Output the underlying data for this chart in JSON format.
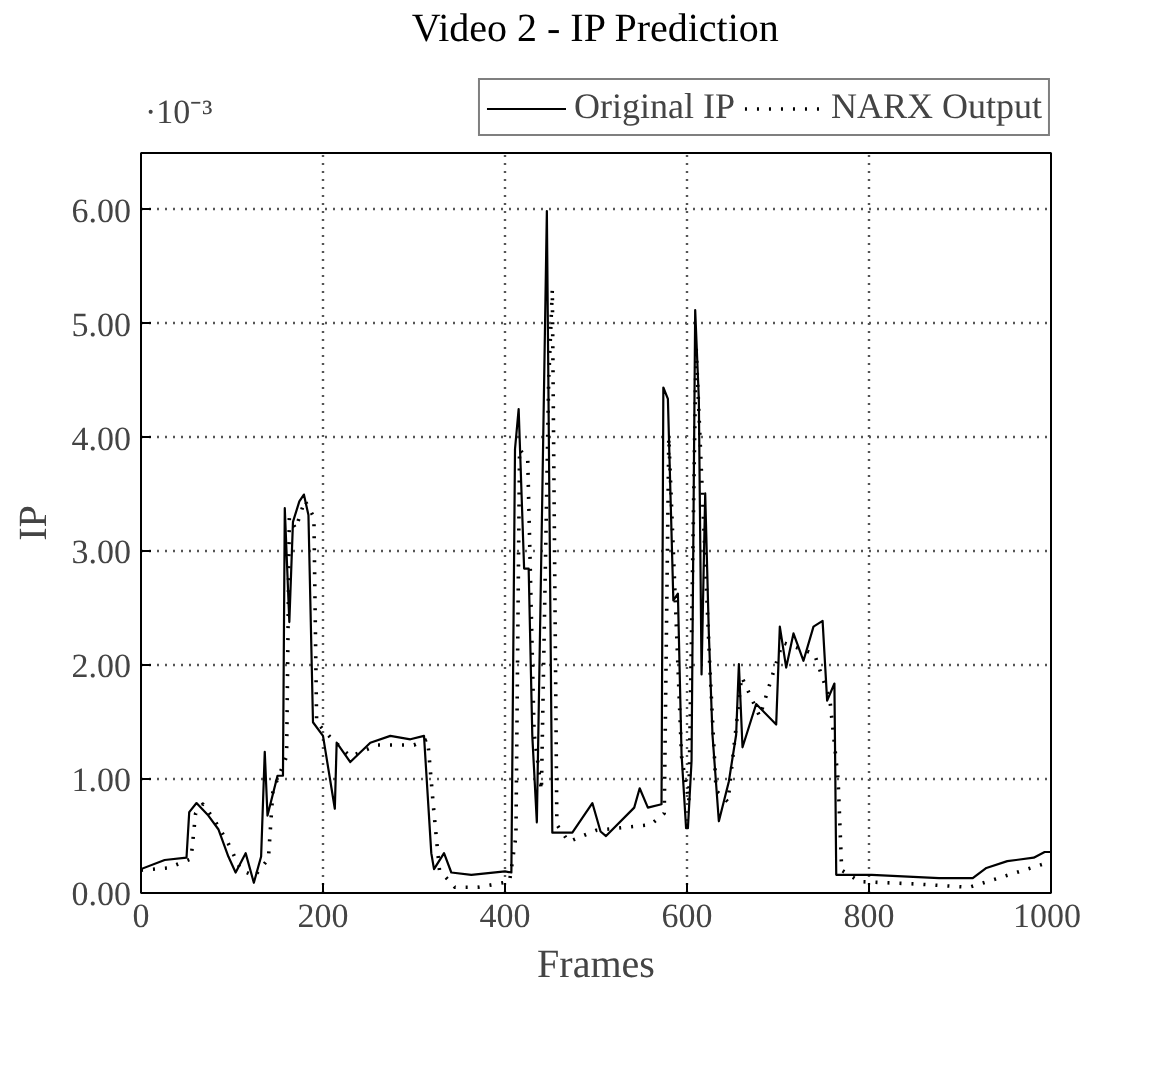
{
  "chart_data": {
    "type": "line",
    "title": "Video 2 - IP Prediction",
    "xlabel": "Frames",
    "ylabel": "IP",
    "annotations": [
      "·10⁻³"
    ],
    "xlim": [
      0,
      1000
    ],
    "ylim": [
      0,
      6.5
    ],
    "xticks": [
      0,
      200,
      400,
      600,
      800,
      1000
    ],
    "yticks": [
      {
        "value": 0,
        "label": "0.00"
      },
      {
        "value": 1,
        "label": "1.00"
      },
      {
        "value": 2,
        "label": "2.00"
      },
      {
        "value": 3,
        "label": "3.00"
      },
      {
        "value": 4,
        "label": "4.00"
      },
      {
        "value": 5,
        "label": "5.00"
      },
      {
        "value": 6,
        "label": "6.00"
      }
    ],
    "grid": true,
    "legend": "top",
    "marker": "none",
    "series": [
      {
        "name": "Original IP",
        "color": "#000000",
        "line_style": "solid",
        "x": [
          0,
          26,
          50,
          53,
          61,
          74,
          85,
          96,
          104,
          115,
          124,
          132,
          136,
          139,
          150,
          156,
          158,
          163,
          167,
          174,
          179,
          184,
          189,
          200,
          213,
          215,
          230,
          252,
          274,
          296,
          311,
          319,
          322,
          333,
          341,
          363,
          400,
          407,
          411,
          415,
          421,
          426,
          430,
          435,
          441,
          446,
          452,
          474,
          496,
          505,
          511,
          542,
          548,
          557,
          572,
          574,
          579,
          585,
          590,
          594,
          599,
          601,
          605,
          609,
          613,
          616,
          620,
          624,
          628,
          635,
          646,
          654,
          657,
          661,
          676,
          698,
          702,
          709,
          717,
          728,
          739,
          749,
          754,
          762,
          764,
          803,
          877,
          914,
          929,
          952,
          981,
          993,
          1000
        ],
        "values": [
          0.21,
          0.29,
          0.31,
          0.71,
          0.79,
          0.68,
          0.56,
          0.32,
          0.18,
          0.35,
          0.09,
          0.32,
          1.24,
          0.68,
          1.03,
          1.03,
          3.38,
          2.38,
          3.26,
          3.44,
          3.5,
          3.32,
          1.5,
          1.38,
          0.74,
          1.32,
          1.15,
          1.32,
          1.38,
          1.35,
          1.38,
          0.35,
          0.21,
          0.35,
          0.18,
          0.16,
          0.19,
          0.18,
          3.9,
          4.25,
          2.85,
          2.85,
          1.38,
          0.62,
          3.5,
          5.99,
          0.53,
          0.53,
          0.79,
          0.54,
          0.5,
          0.75,
          0.92,
          0.75,
          0.78,
          4.44,
          4.34,
          2.57,
          2.63,
          1.22,
          0.57,
          0.57,
          1.16,
          5.12,
          4.34,
          1.92,
          3.51,
          2.28,
          1.39,
          0.63,
          0.98,
          1.39,
          2.01,
          1.28,
          1.66,
          1.48,
          2.34,
          1.98,
          2.28,
          2.04,
          2.34,
          2.39,
          1.69,
          1.84,
          0.16,
          0.16,
          0.13,
          0.13,
          0.22,
          0.28,
          0.31,
          0.36,
          0.36
        ]
      },
      {
        "name": "NARX Output",
        "color": "#000000",
        "line_style": "dotted",
        "x": [
          0,
          30,
          55,
          60,
          68,
          80,
          95,
          110,
          125,
          140,
          145,
          160,
          163,
          170,
          180,
          190,
          193,
          210,
          230,
          260,
          300,
          315,
          322,
          328,
          345,
          370,
          405,
          412,
          416,
          425,
          432,
          440,
          448,
          452,
          457,
          470,
          500,
          560,
          575,
          580,
          588,
          594,
          602,
          610,
          618,
          625,
          632,
          645,
          660,
          680,
          705,
          740,
          757,
          766,
          770,
          790,
          850,
          910,
          950,
          990
        ],
        "values": [
          0.2,
          0.22,
          0.3,
          0.7,
          0.78,
          0.65,
          0.45,
          0.2,
          0.15,
          0.3,
          0.9,
          1.2,
          3.3,
          3.2,
          3.45,
          3.3,
          1.5,
          1.35,
          1.2,
          1.3,
          1.3,
          1.35,
          0.7,
          0.2,
          0.05,
          0.05,
          0.1,
          0.5,
          3.9,
          3.8,
          1.4,
          0.9,
          4.5,
          5.3,
          0.6,
          0.45,
          0.55,
          0.6,
          0.7,
          4.0,
          2.4,
          1.2,
          0.8,
          4.8,
          3.3,
          2.0,
          0.9,
          0.8,
          1.9,
          1.55,
          2.2,
          2.1,
          1.7,
          1.0,
          0.2,
          0.1,
          0.08,
          0.05,
          0.15,
          0.25
        ]
      }
    ]
  }
}
